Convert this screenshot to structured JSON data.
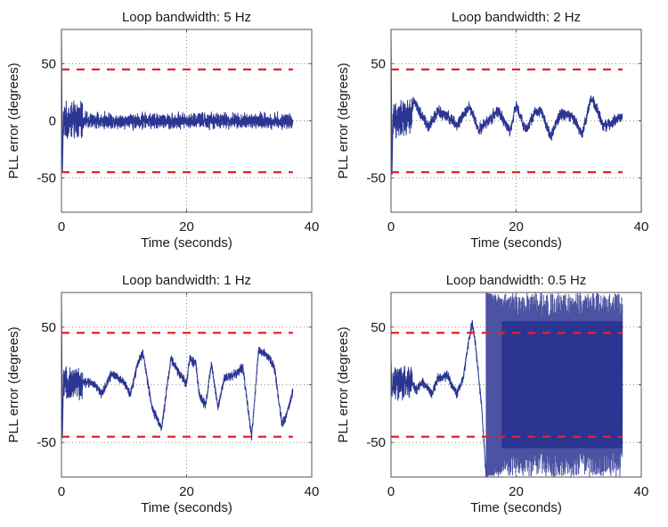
{
  "figure": {
    "colors": {
      "trace": "#2b3592",
      "threshold": "#e8202a",
      "grid": "#8c8c8c",
      "axes": "#555555",
      "text": "#1a1a1a"
    }
  },
  "chart_data": [
    {
      "type": "line",
      "title": "Loop bandwidth: 5 Hz",
      "xlabel": "Time (seconds)",
      "ylabel": "PLL error (degrees)",
      "xlim": [
        0,
        40
      ],
      "ylim": [
        -80,
        80
      ],
      "xticks": [
        0,
        20,
        40
      ],
      "xtick_labels": [
        "0",
        "20",
        "40"
      ],
      "yticks": [
        -50,
        0,
        50
      ],
      "ytick_labels": [
        "-50",
        "0",
        "50"
      ],
      "grid": true,
      "thresholds": [
        45,
        -45
      ],
      "threshold_xrange": [
        0,
        37
      ],
      "series": [
        {
          "name": "PLL error",
          "x_end": 37,
          "initial_transient": [
            [
              0,
              80
            ],
            [
              0.15,
              -45
            ],
            [
              0.3,
              0
            ]
          ],
          "trend": [
            [
              0.3,
              0
            ],
            [
              37,
              0
            ]
          ],
          "noise": [
            {
              "t": [
                0.3,
                3.4
              ],
              "amplitude": 18,
              "dense": true
            },
            {
              "t": [
                3.4,
                37
              ],
              "amplitude": 7,
              "dense": false
            }
          ]
        }
      ]
    },
    {
      "type": "line",
      "title": "Loop bandwidth: 2 Hz",
      "xlabel": "Time (seconds)",
      "ylabel": "PLL error (degrees)",
      "xlim": [
        0,
        40
      ],
      "ylim": [
        -80,
        80
      ],
      "xticks": [
        0,
        20,
        40
      ],
      "xtick_labels": [
        "0",
        "20",
        "40"
      ],
      "yticks": [
        -50,
        0,
        50
      ],
      "ytick_labels": [
        "-50",
        "",
        "50"
      ],
      "grid": true,
      "thresholds": [
        45,
        -45
      ],
      "threshold_xrange": [
        0,
        37
      ],
      "series": [
        {
          "name": "PLL error",
          "x_end": 37,
          "initial_transient": [
            [
              0,
              80
            ],
            [
              0.15,
              -47
            ],
            [
              0.3,
              0
            ]
          ],
          "trend": [
            [
              0.3,
              0
            ],
            [
              3.2,
              2
            ],
            [
              3.6,
              18
            ],
            [
              4.5,
              8
            ],
            [
              6,
              -5
            ],
            [
              7.5,
              8
            ],
            [
              9,
              4
            ],
            [
              10.5,
              -4
            ],
            [
              12.5,
              13
            ],
            [
              14,
              -8
            ],
            [
              16,
              2
            ],
            [
              17,
              10
            ],
            [
              19,
              -9
            ],
            [
              20,
              14
            ],
            [
              21.5,
              -8
            ],
            [
              23,
              7
            ],
            [
              24,
              10
            ],
            [
              25.5,
              -14
            ],
            [
              27,
              6
            ],
            [
              29,
              4
            ],
            [
              30.5,
              -12
            ],
            [
              32,
              20
            ],
            [
              33,
              8
            ],
            [
              34,
              -5
            ],
            [
              36,
              0
            ],
            [
              37,
              5
            ]
          ],
          "noise": [
            {
              "t": [
                0.3,
                3.4
              ],
              "amplitude": 18,
              "dense": true
            },
            {
              "t": [
                3.4,
                37
              ],
              "amplitude": 5,
              "dense": false
            }
          ]
        }
      ]
    },
    {
      "type": "line",
      "title": "Loop bandwidth: 1 Hz",
      "xlabel": "Time (seconds)",
      "ylabel": "PLL error (degrees)",
      "xlim": [
        0,
        40
      ],
      "ylim": [
        -80,
        80
      ],
      "xticks": [
        0,
        20,
        40
      ],
      "xtick_labels": [
        "0",
        "20",
        "40"
      ],
      "yticks": [
        -50,
        0,
        50
      ],
      "ytick_labels": [
        "-50",
        "",
        "50"
      ],
      "grid": true,
      "thresholds": [
        45,
        -45
      ],
      "threshold_xrange": [
        0,
        37
      ],
      "series": [
        {
          "name": "PLL error",
          "x_end": 37,
          "initial_transient": [
            [
              0,
              80
            ],
            [
              0.15,
              -46
            ],
            [
              0.3,
              0
            ]
          ],
          "trend": [
            [
              0.3,
              0
            ],
            [
              3.4,
              2
            ],
            [
              5,
              2
            ],
            [
              6.5,
              -8
            ],
            [
              8,
              10
            ],
            [
              10,
              2
            ],
            [
              11,
              -8
            ],
            [
              12.3,
              20
            ],
            [
              13,
              28
            ],
            [
              14.5,
              -20
            ],
            [
              16,
              -38
            ],
            [
              17.5,
              23
            ],
            [
              19,
              8
            ],
            [
              20,
              2
            ],
            [
              20.5,
              23
            ],
            [
              21.5,
              18
            ],
            [
              22,
              -8
            ],
            [
              23,
              -18
            ],
            [
              24,
              18
            ],
            [
              25,
              -20
            ],
            [
              26,
              5
            ],
            [
              28,
              10
            ],
            [
              29,
              15
            ],
            [
              30.4,
              -45
            ],
            [
              31.5,
              30
            ],
            [
              33,
              25
            ],
            [
              34,
              15
            ],
            [
              35.3,
              -35
            ],
            [
              36,
              -25
            ],
            [
              37,
              -5
            ]
          ],
          "noise": [
            {
              "t": [
                0.3,
                3.4
              ],
              "amplitude": 16,
              "dense": true
            },
            {
              "t": [
                3.4,
                37
              ],
              "amplitude": 4,
              "dense": false
            }
          ]
        }
      ]
    },
    {
      "type": "line",
      "title": "Loop bandwidth: 0.5 Hz",
      "xlabel": "Time (seconds)",
      "ylabel": "PLL error (degrees)",
      "xlim": [
        0,
        40
      ],
      "ylim": [
        -80,
        80
      ],
      "xticks": [
        0,
        20,
        40
      ],
      "xtick_labels": [
        "0",
        "20",
        "40"
      ],
      "yticks": [
        -50,
        0,
        50
      ],
      "ytick_labels": [
        "-50",
        "",
        "50"
      ],
      "grid": true,
      "thresholds": [
        45,
        -45
      ],
      "threshold_xrange": [
        0,
        37
      ],
      "series": [
        {
          "name": "PLL error",
          "x_end": 37,
          "initial_transient": [
            [
              0,
              25
            ],
            [
              0.15,
              -10
            ],
            [
              0.3,
              0
            ]
          ],
          "trend": [
            [
              0.3,
              0
            ],
            [
              3.4,
              2
            ],
            [
              4,
              -5
            ],
            [
              5,
              3
            ],
            [
              6.5,
              -8
            ],
            [
              7.5,
              5
            ],
            [
              9,
              8
            ],
            [
              10.5,
              -8
            ],
            [
              11.5,
              5
            ],
            [
              12.5,
              40
            ],
            [
              13,
              54
            ],
            [
              13.5,
              35
            ],
            [
              14.5,
              -20
            ],
            [
              15.2,
              -80
            ]
          ],
          "noise": [
            {
              "t": [
                0.3,
                3.4
              ],
              "amplitude": 16,
              "dense": true
            },
            {
              "t": [
                3.4,
                15.2
              ],
              "amplitude": 4,
              "dense": false
            }
          ],
          "cycle_slip_region": {
            "t": [
              15.2,
              37
            ],
            "value_range": [
              -80,
              80
            ],
            "description": "loss of lock, wrapping phase error"
          }
        }
      ]
    }
  ]
}
